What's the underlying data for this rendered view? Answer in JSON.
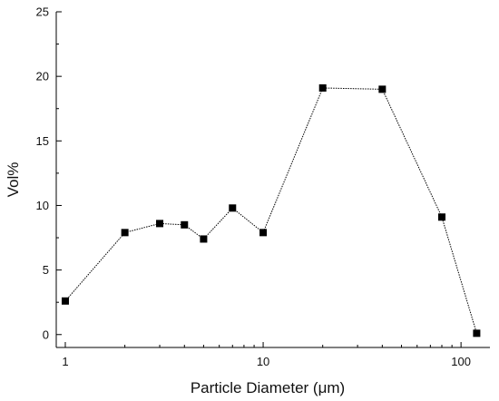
{
  "chart_data": {
    "type": "line",
    "title": "",
    "xlabel": "Particle Diameter (μm)",
    "ylabel": "Vol%",
    "x_scale": "log",
    "xlim": [
      0.9,
      140
    ],
    "ylim": [
      -1,
      25
    ],
    "x_ticks": [
      1,
      10,
      100
    ],
    "x_tick_labels": [
      "1",
      "10",
      "100"
    ],
    "y_ticks": [
      0,
      5,
      10,
      15,
      20,
      25
    ],
    "y_tick_labels": [
      "0",
      "5",
      "10",
      "15",
      "20",
      "25"
    ],
    "grid": false,
    "legend": "none",
    "marker": "square",
    "line_style": "dotted",
    "color": "#000000",
    "series": [
      {
        "x": [
          1,
          2,
          3,
          4,
          5,
          7,
          10,
          20,
          40,
          80,
          120
        ],
        "y": [
          2.6,
          7.9,
          8.6,
          8.5,
          7.4,
          9.8,
          7.9,
          19.1,
          19.0,
          9.1,
          0.1
        ]
      }
    ]
  }
}
